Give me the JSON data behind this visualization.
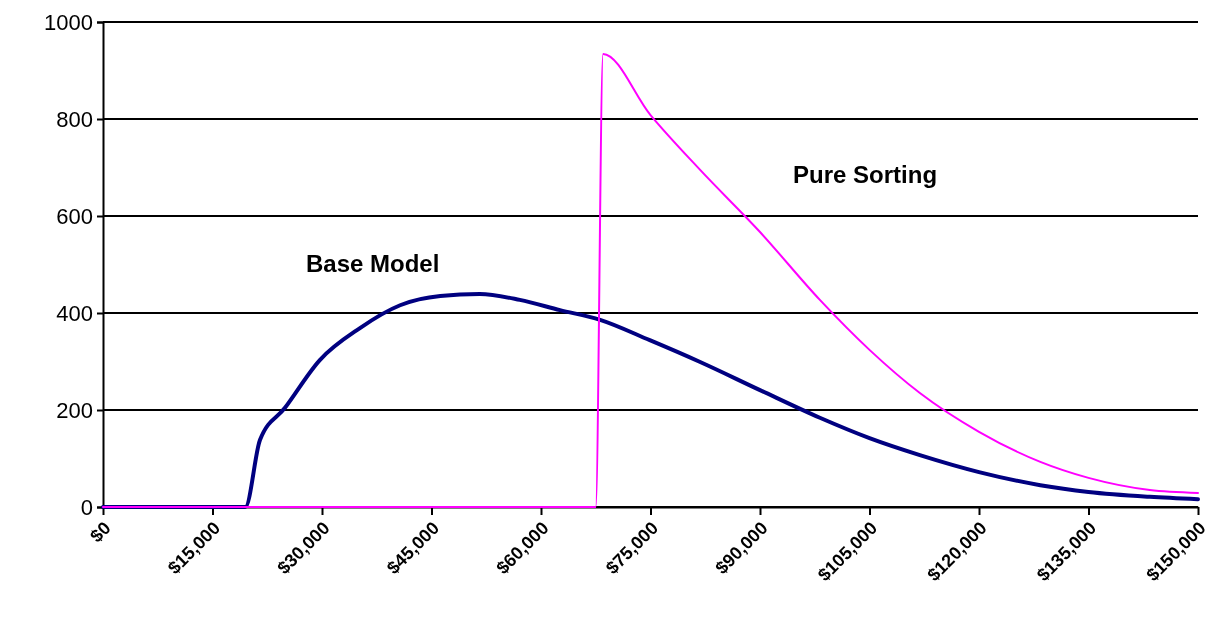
{
  "chart_data": {
    "type": "line",
    "xlim": [
      0,
      150000
    ],
    "ylim": [
      0,
      1000
    ],
    "xticks": [
      {
        "value": 0,
        "label": "$0"
      },
      {
        "value": 15000,
        "label": "$15,000"
      },
      {
        "value": 30000,
        "label": "$30,000"
      },
      {
        "value": 45000,
        "label": "$45,000"
      },
      {
        "value": 60000,
        "label": "$60,000"
      },
      {
        "value": 75000,
        "label": "$75,000"
      },
      {
        "value": 90000,
        "label": "$90,000"
      },
      {
        "value": 105000,
        "label": "$105,000"
      },
      {
        "value": 120000,
        "label": "$120,000"
      },
      {
        "value": 135000,
        "label": "$135,000"
      },
      {
        "value": 150000,
        "label": "$150,000"
      }
    ],
    "yticks": [
      0,
      200,
      400,
      600,
      800,
      1000
    ],
    "grid": "y",
    "marker": "none",
    "line_style": "solid",
    "series": [
      {
        "name": "Base Model",
        "color": "#000080",
        "x": [
          0,
          19500,
          21500,
          24900,
          29700,
          35200,
          40700,
          46200,
          51600,
          57100,
          62600,
          68100,
          74900,
          81800,
          90000,
          98200,
          105000,
          111900,
          120000,
          128400,
          135000,
          143400,
          150000
        ],
        "values": [
          0,
          0,
          138,
          204,
          303,
          369,
          416,
          435,
          439,
          427,
          406,
          386,
          344,
          299,
          241,
          184,
          142,
          107,
          72,
          45,
          31,
          21,
          16
        ]
      },
      {
        "name": "Pure Sorting",
        "color": "#ff00ff",
        "x": [
          0,
          67500,
          68500,
          75000,
          81800,
          90000,
          98200,
          105000,
          111900,
          120000,
          128400,
          135000,
          143400,
          150000
        ],
        "values": [
          0,
          0,
          934,
          808,
          695,
          567,
          427,
          324,
          235,
          155,
          93,
          60,
          35,
          29
        ]
      }
    ]
  }
}
